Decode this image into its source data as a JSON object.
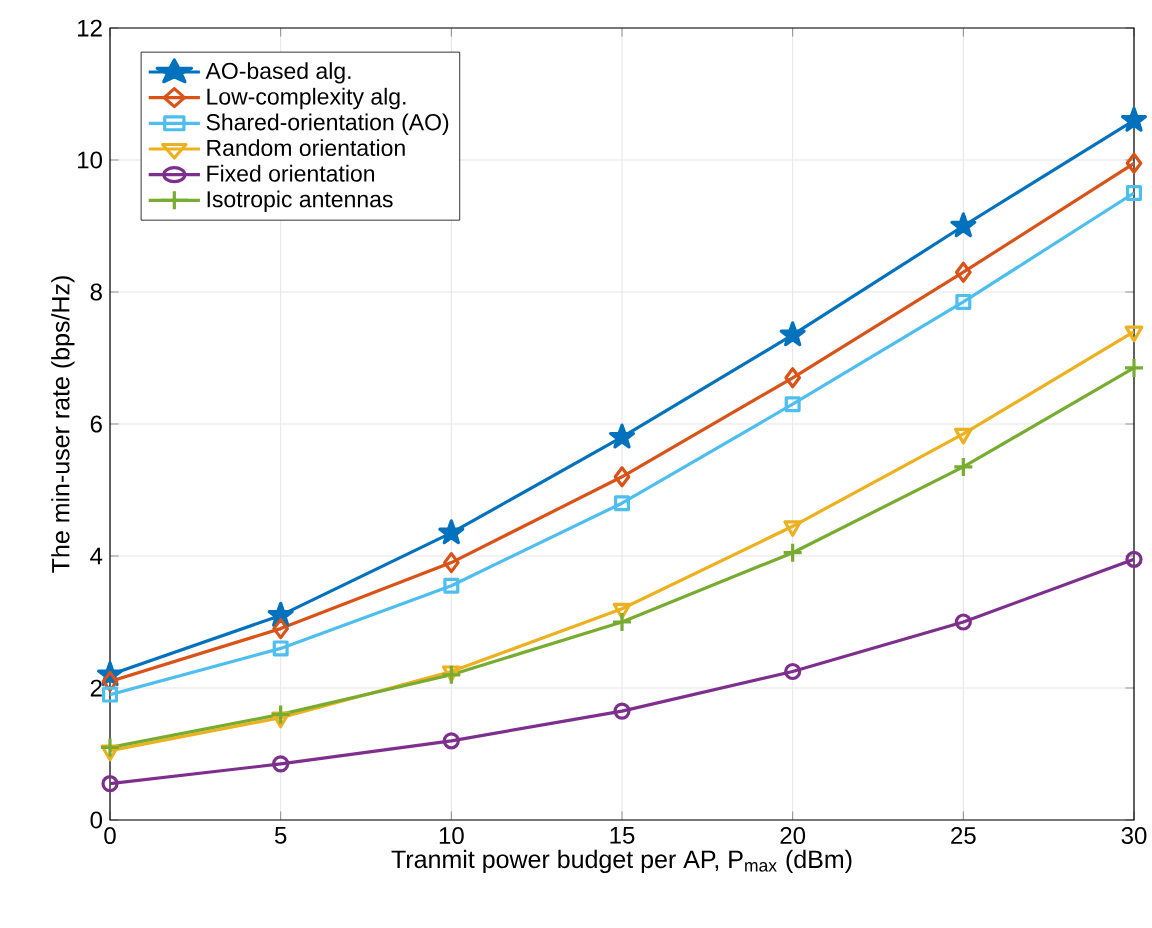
{
  "chart_data": {
    "type": "line",
    "xlabel": "Tranmit power budget per AP, P$_{max}$ (dBm)",
    "ylabel": "The min-user rate (bps/Hz)",
    "x": [
      0,
      5,
      10,
      15,
      20,
      25,
      30
    ],
    "xlim": [
      0,
      30
    ],
    "xticks": [
      0,
      5,
      10,
      15,
      20,
      25,
      30
    ],
    "ylim": [
      0,
      12
    ],
    "yticks": [
      0,
      2,
      4,
      6,
      8,
      10,
      12
    ],
    "grid": true,
    "legend": "top left",
    "line_style": "solid",
    "series": [
      {
        "name": "AO-based alg.",
        "color": "#0072bd",
        "marker": "star",
        "values": [
          2.2,
          3.1,
          4.35,
          5.8,
          7.35,
          9.0,
          10.6
        ]
      },
      {
        "name": "Low-complexity alg.",
        "color": "#d95319",
        "marker": "diamond",
        "values": [
          2.1,
          2.9,
          3.9,
          5.2,
          6.7,
          8.3,
          9.95
        ]
      },
      {
        "name": "Shared-orientation (AO)",
        "color": "#4dbeee",
        "marker": "square",
        "values": [
          1.9,
          2.6,
          3.55,
          4.8,
          6.3,
          7.85,
          9.5
        ]
      },
      {
        "name": "Random orientation",
        "color": "#edb120",
        "marker": "triangle",
        "values": [
          1.05,
          1.55,
          2.25,
          3.2,
          4.45,
          5.85,
          7.4
        ]
      },
      {
        "name": "Fixed orientation",
        "color": "#7e2f8e",
        "marker": "circle",
        "values": [
          0.55,
          0.85,
          1.2,
          1.65,
          2.25,
          3.0,
          3.95
        ]
      },
      {
        "name": "Isotropic antennas",
        "color": "#77ac30",
        "marker": "cross",
        "values": [
          1.1,
          1.6,
          2.2,
          3.0,
          4.05,
          5.35,
          6.85
        ]
      }
    ]
  }
}
